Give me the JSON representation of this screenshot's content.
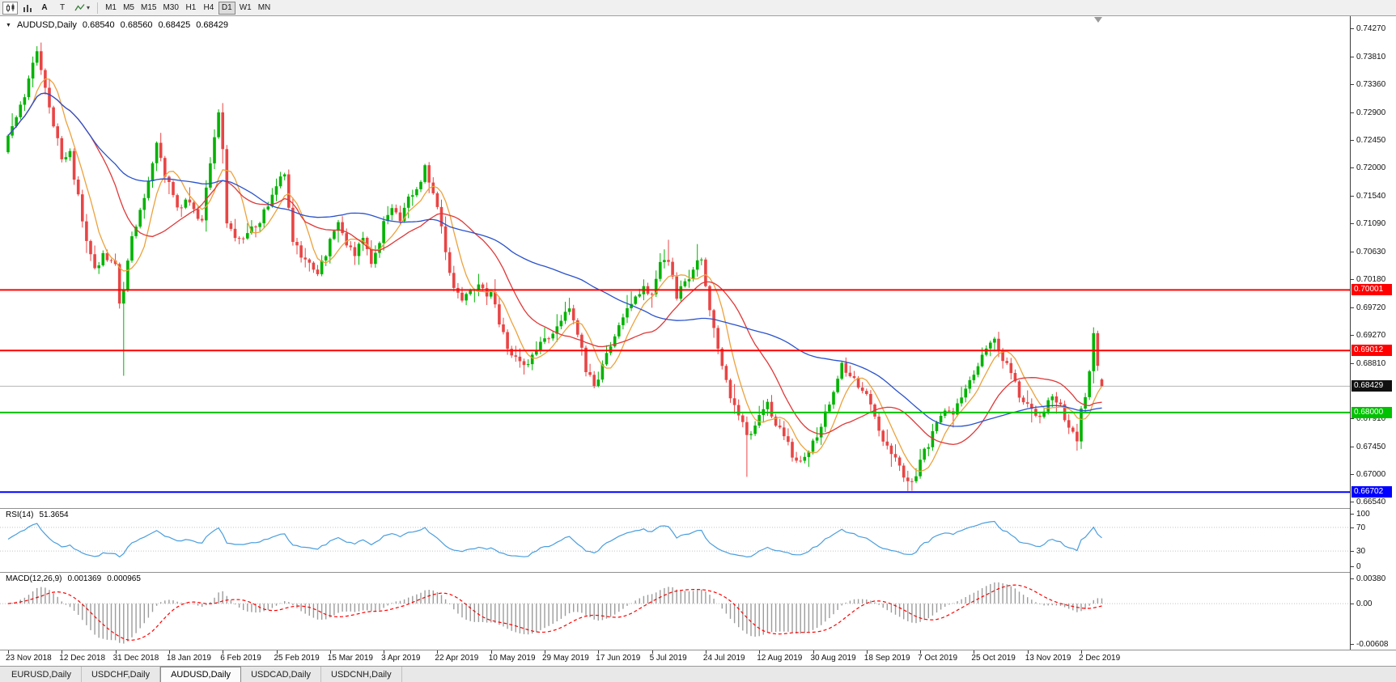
{
  "toolbar": {
    "cursor_tool_label": "A",
    "text_tool_label": "T",
    "timeframes": [
      "M1",
      "M5",
      "M15",
      "M30",
      "H1",
      "H4",
      "D1",
      "W1",
      "MN"
    ],
    "active_timeframe": "D1"
  },
  "chart": {
    "symbol_period": "AUDUSD,Daily",
    "open": "0.68540",
    "high": "0.68560",
    "low": "0.68425",
    "close": "0.68429"
  },
  "rsi": {
    "label": "RSI(14)",
    "value": "51.3654"
  },
  "macd": {
    "label": "MACD(12,26,9)",
    "main": "0.001369",
    "signal": "0.000965"
  },
  "tabs": {
    "items": [
      "EURUSD,Daily",
      "USDCHF,Daily",
      "AUDUSD,Daily",
      "USDCAD,Daily",
      "USDCNH,Daily"
    ],
    "active_index": 2
  },
  "chart_data": {
    "type": "candlestick",
    "symbol": "AUDUSD",
    "timeframe": "Daily",
    "title": "AUDUSD,Daily 0.68540 0.68560 0.68425 0.68429",
    "candle_count": 266,
    "label_step": 13,
    "y_range": [
      0.6644,
      0.7447
    ],
    "price_axis_ticks": [
      "0.74270",
      "0.73810",
      "0.73360",
      "0.72900",
      "0.72450",
      "0.72000",
      "0.71540",
      "0.71090",
      "0.70630",
      "0.70180",
      "0.69720",
      "0.69270",
      "0.68810",
      "0.67910",
      "0.67450",
      "0.67000",
      "0.66540"
    ],
    "price_path_anchors": [
      [
        0,
        0.7245
      ],
      [
        2,
        0.728
      ],
      [
        4,
        0.732
      ],
      [
        6,
        0.737
      ],
      [
        7,
        0.739
      ],
      [
        9,
        0.733
      ],
      [
        11,
        0.727
      ],
      [
        13,
        0.7215
      ],
      [
        15,
        0.7225
      ],
      [
        17,
        0.715
      ],
      [
        19,
        0.708
      ],
      [
        21,
        0.704
      ],
      [
        23,
        0.7055
      ],
      [
        26,
        0.7045
      ],
      [
        27,
        0.6985
      ],
      [
        28,
        0.7
      ],
      [
        30,
        0.709
      ],
      [
        32,
        0.713
      ],
      [
        34,
        0.7185
      ],
      [
        36,
        0.7235
      ],
      [
        38,
        0.719
      ],
      [
        39,
        0.717
      ],
      [
        41,
        0.713
      ],
      [
        43,
        0.715
      ],
      [
        45,
        0.7125
      ],
      [
        47,
        0.711
      ],
      [
        49,
        0.721
      ],
      [
        51,
        0.729
      ],
      [
        52,
        0.723
      ],
      [
        53,
        0.711
      ],
      [
        55,
        0.708
      ],
      [
        58,
        0.7095
      ],
      [
        61,
        0.711
      ],
      [
        63,
        0.714
      ],
      [
        65,
        0.717
      ],
      [
        67,
        0.7195
      ],
      [
        68,
        0.713
      ],
      [
        69,
        0.708
      ],
      [
        71,
        0.706
      ],
      [
        73,
        0.704
      ],
      [
        75,
        0.703
      ],
      [
        77,
        0.706
      ],
      [
        78,
        0.709
      ],
      [
        80,
        0.711
      ],
      [
        82,
        0.708
      ],
      [
        84,
        0.706
      ],
      [
        86,
        0.708
      ],
      [
        88,
        0.705
      ],
      [
        90,
        0.708
      ],
      [
        91,
        0.711
      ],
      [
        93,
        0.713
      ],
      [
        95,
        0.711
      ],
      [
        97,
        0.715
      ],
      [
        99,
        0.716
      ],
      [
        101,
        0.72
      ],
      [
        103,
        0.716
      ],
      [
        104,
        0.714
      ],
      [
        106,
        0.706
      ],
      [
        108,
        0.701
      ],
      [
        110,
        0.699
      ],
      [
        112,
        0.7
      ],
      [
        114,
        0.701
      ],
      [
        117,
        0.699
      ],
      [
        119,
        0.695
      ],
      [
        121,
        0.691
      ],
      [
        123,
        0.689
      ],
      [
        125,
        0.687
      ],
      [
        127,
        0.689
      ],
      [
        129,
        0.691
      ],
      [
        130,
        0.692
      ],
      [
        132,
        0.693
      ],
      [
        134,
        0.695
      ],
      [
        136,
        0.697
      ],
      [
        138,
        0.693
      ],
      [
        140,
        0.687
      ],
      [
        142,
        0.6845
      ],
      [
        143,
        0.686
      ],
      [
        145,
        0.69
      ],
      [
        147,
        0.693
      ],
      [
        149,
        0.696
      ],
      [
        151,
        0.698
      ],
      [
        153,
        0.7
      ],
      [
        156,
        0.7
      ],
      [
        158,
        0.704
      ],
      [
        160,
        0.705
      ],
      [
        162,
        0.699
      ],
      [
        164,
        0.701
      ],
      [
        166,
        0.704
      ],
      [
        168,
        0.705
      ],
      [
        169,
        0.7
      ],
      [
        171,
        0.694
      ],
      [
        173,
        0.688
      ],
      [
        175,
        0.683
      ],
      [
        177,
        0.68
      ],
      [
        179,
        0.676
      ],
      [
        181,
        0.678
      ],
      [
        182,
        0.679
      ],
      [
        184,
        0.681
      ],
      [
        186,
        0.678
      ],
      [
        188,
        0.676
      ],
      [
        190,
        0.673
      ],
      [
        192,
        0.672
      ],
      [
        194,
        0.674
      ],
      [
        196,
        0.676
      ],
      [
        198,
        0.68
      ],
      [
        200,
        0.684
      ],
      [
        202,
        0.6875
      ],
      [
        204,
        0.686
      ],
      [
        206,
        0.684
      ],
      [
        208,
        0.683
      ],
      [
        210,
        0.679
      ],
      [
        212,
        0.676
      ],
      [
        214,
        0.673
      ],
      [
        216,
        0.671
      ],
      [
        218,
        0.669
      ],
      [
        220,
        0.67
      ],
      [
        221,
        0.672
      ],
      [
        223,
        0.675
      ],
      [
        225,
        0.678
      ],
      [
        227,
        0.681
      ],
      [
        229,
        0.679
      ],
      [
        231,
        0.683
      ],
      [
        233,
        0.685
      ],
      [
        235,
        0.688
      ],
      [
        237,
        0.69
      ],
      [
        239,
        0.692
      ],
      [
        241,
        0.689
      ],
      [
        243,
        0.686
      ],
      [
        245,
        0.683
      ],
      [
        247,
        0.681
      ],
      [
        249,
        0.679
      ],
      [
        251,
        0.68
      ],
      [
        253,
        0.683
      ],
      [
        255,
        0.681
      ],
      [
        257,
        0.678
      ],
      [
        259,
        0.676
      ],
      [
        260,
        0.68
      ],
      [
        261,
        0.683
      ],
      [
        262,
        0.686
      ],
      [
        263,
        0.6925
      ],
      [
        264,
        0.688
      ],
      [
        265,
        0.6843
      ]
    ],
    "special_lows": {
      "28": 0.686,
      "125": 0.6862,
      "179": 0.6695,
      "218": 0.6672,
      "259": 0.6754
    },
    "special_highs": {
      "7": 0.7398,
      "51": 0.7295,
      "101": 0.7206,
      "160": 0.7082,
      "167": 0.7075,
      "263": 0.6939
    },
    "last_bar": [
      0.6854,
      0.6856,
      0.68425,
      0.68429
    ],
    "candle_up_color": "#00b300",
    "candle_down_color": "#e84545",
    "moving_averages": [
      {
        "name": "fast-ma",
        "period": 7,
        "color": "#eca23c"
      },
      {
        "name": "medium-ma",
        "period": 20,
        "color": "#e03838"
      },
      {
        "name": "slow-ma",
        "period": 55,
        "color": "#2a52cc"
      }
    ],
    "horizontal_lines": [
      {
        "price": 0.70001,
        "label": "0.70001",
        "color": "#ff0000"
      },
      {
        "price": 0.69012,
        "label": "0.69012",
        "color": "#ff0000"
      },
      {
        "price": 0.68,
        "label": "0.68000",
        "color": "#00c200"
      },
      {
        "price": 0.66702,
        "label": "0.66702",
        "color": "#0000ff"
      }
    ],
    "current_price": {
      "value": 0.68429,
      "label": "0.68429",
      "line_color": "#b4b4b4",
      "badge_color": "#111111"
    },
    "x_axis_dates": [
      "23 Nov 2018",
      "12 Dec 2018",
      "31 Dec 2018",
      "18 Jan 2019",
      "6 Feb 2019",
      "25 Feb 2019",
      "15 Mar 2019",
      "3 Apr 2019",
      "22 Apr 2019",
      "10 May 2019",
      "29 May 2019",
      "17 Jun 2019",
      "5 Jul 2019",
      "24 Jul 2019",
      "12 Aug 2019",
      "30 Aug 2019",
      "18 Sep 2019",
      "7 Oct 2019",
      "25 Oct 2019",
      "13 Nov 2019",
      "2 Dec 2019"
    ],
    "indicators": [
      {
        "name": "RSI",
        "params": "14",
        "value": "51.3654",
        "color": "#4a9ede",
        "levels": [
          100,
          70,
          30,
          0
        ],
        "level_labels": [
          "100",
          "70",
          "30",
          "0"
        ],
        "range": [
          0,
          100
        ]
      },
      {
        "name": "MACD",
        "params": "12,26,9",
        "values": [
          "0.001369",
          "0.000965"
        ],
        "histogram_color": "#9c9c9c",
        "signal_color": "#ff0000",
        "axis_labels": [
          "0.00380",
          "0.00",
          "-0.00608"
        ],
        "axis_values": [
          0.0038,
          0,
          -0.00608
        ],
        "range": [
          -0.007,
          0.0048
        ]
      }
    ]
  }
}
